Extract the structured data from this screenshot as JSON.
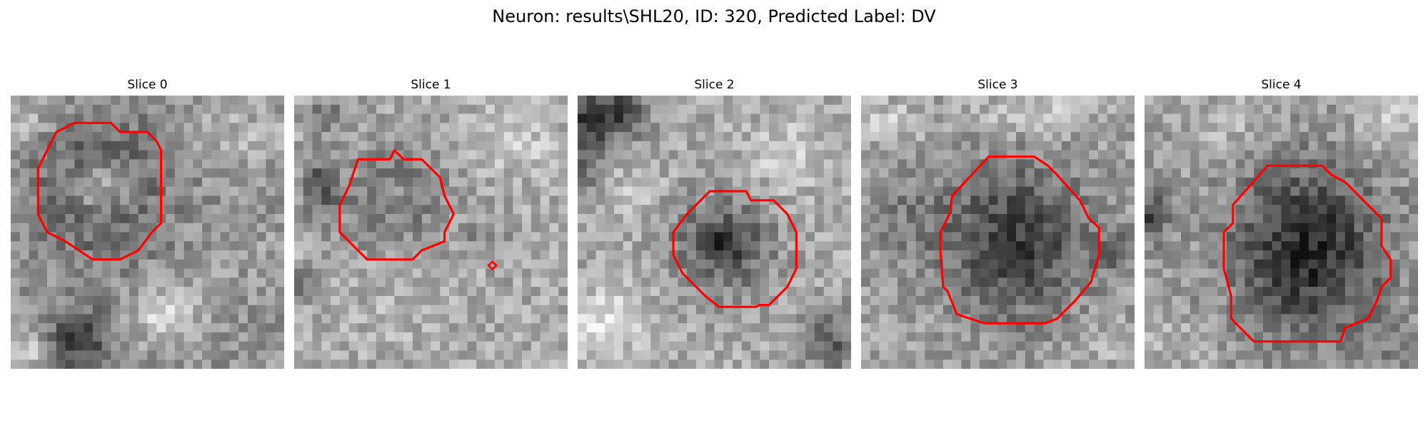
{
  "figure": {
    "title": "Neuron: results\\SHL20, ID: 320, Predicted Label: DV"
  },
  "panels": [
    {
      "title": "Slice 0"
    },
    {
      "title": "Slice 1"
    },
    {
      "title": "Slice 2"
    },
    {
      "title": "Slice 3"
    },
    {
      "title": "Slice 4"
    }
  ],
  "colors": {
    "contour": "#ff0000",
    "image_colormap": "grayscale"
  }
}
